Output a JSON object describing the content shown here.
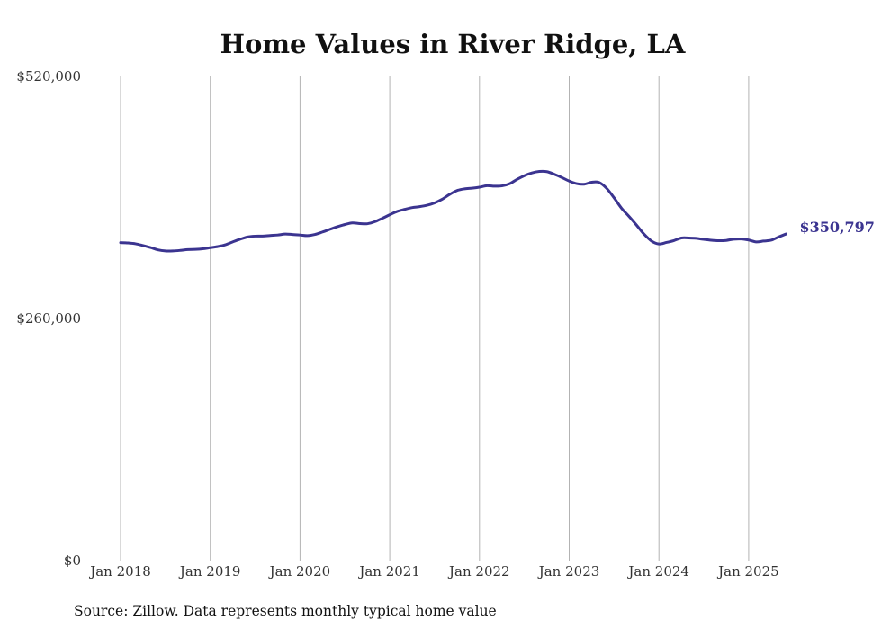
{
  "source_note": "Source: Zillow. Data represents monthly typical home value",
  "colors": {
    "line": "#3b3490",
    "grid": "#b3b3b3",
    "text": "#333333"
  },
  "chart_data": {
    "type": "line",
    "title": "Home Values in River Ridge, LA",
    "xlabel": "",
    "ylabel": "",
    "ylim": [
      0,
      520000
    ],
    "y_ticks": [
      {
        "value": 0,
        "label": "$0"
      },
      {
        "value": 260000,
        "label": "$260,000"
      },
      {
        "value": 520000,
        "label": "$520,000"
      }
    ],
    "x_ticks": [
      "Jan 2018",
      "Jan 2019",
      "Jan 2020",
      "Jan 2021",
      "Jan 2022",
      "Jan 2023",
      "Jan 2024",
      "Jan 2025"
    ],
    "x_start": "Jan 2018",
    "x_end": "Jun 2025",
    "grid": "vertical",
    "end_label": "$350,797",
    "series": [
      {
        "values": [
          341500,
          341200,
          340300,
          338400,
          336300,
          333800,
          332600,
          332600,
          333200,
          334100,
          334300,
          334900,
          336100,
          337300,
          339200,
          342300,
          345200,
          347600,
          348500,
          348600,
          349200,
          349700,
          350700,
          350300,
          349700,
          349000,
          350300,
          352900,
          355800,
          358600,
          361000,
          362700,
          362000,
          361800,
          364000,
          367600,
          371500,
          375100,
          377300,
          379200,
          380200,
          381700,
          384200,
          388100,
          393300,
          397500,
          399300,
          400000,
          401100,
          402700,
          402200,
          402500,
          404700,
          409400,
          413500,
          416400,
          418000,
          417800,
          415000,
          411500,
          407700,
          404900,
          404300,
          406400,
          406200,
          399900,
          389700,
          378500,
          369700,
          360400,
          350700,
          343300,
          340100,
          341700,
          343700,
          346500,
          346500,
          346100,
          345000,
          344100,
          343600,
          343900,
          345200,
          345400,
          344300,
          342300,
          343200,
          344100,
          347600,
          350800
        ]
      }
    ]
  }
}
